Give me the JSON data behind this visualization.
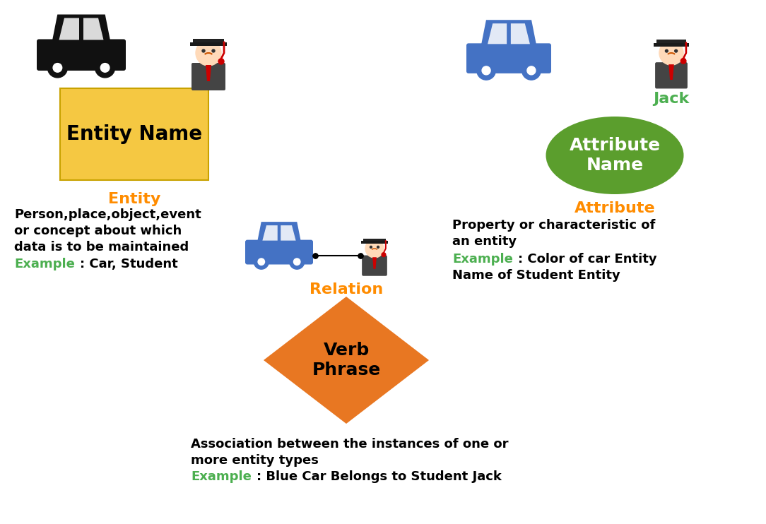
{
  "bg_color": "#ffffff",
  "orange_color": "#FF8C00",
  "green_color": "#4CAF50",
  "blue_car_color": "#4472C4",
  "black_color": "#000000",
  "white_color": "#ffffff",
  "entity_box_color": "#F5C842",
  "entity_box_edge": "#C8A200",
  "diamond_color": "#E87722",
  "ellipse_color": "#5B9E2D",
  "entity_label": "Entity",
  "entity_name": "Entity Name",
  "entity_desc1": "Person,place,object,event",
  "entity_desc2": "or concept about which",
  "entity_desc3": "data is to be maintained",
  "entity_example_label": "Example",
  "entity_example_text": ": Car, Student",
  "attribute_label": "Attribute",
  "attribute_name": "Attribute\nName",
  "jack_label": "Jack",
  "attr_desc1": "Property or characteristic of",
  "attr_desc2": "an entity",
  "attr_example_label": "Example",
  "attr_example_text": ": Color of car Entity",
  "attr_desc3": "Name of Student Entity",
  "relation_label": "Relation",
  "relation_name": "Verb\nPhrase",
  "rel_desc1": "Association between the instances of one or",
  "rel_desc2": "more entity types",
  "rel_example_label": "Example",
  "rel_example_text": ": Blue Car Belongs to Student Jack"
}
